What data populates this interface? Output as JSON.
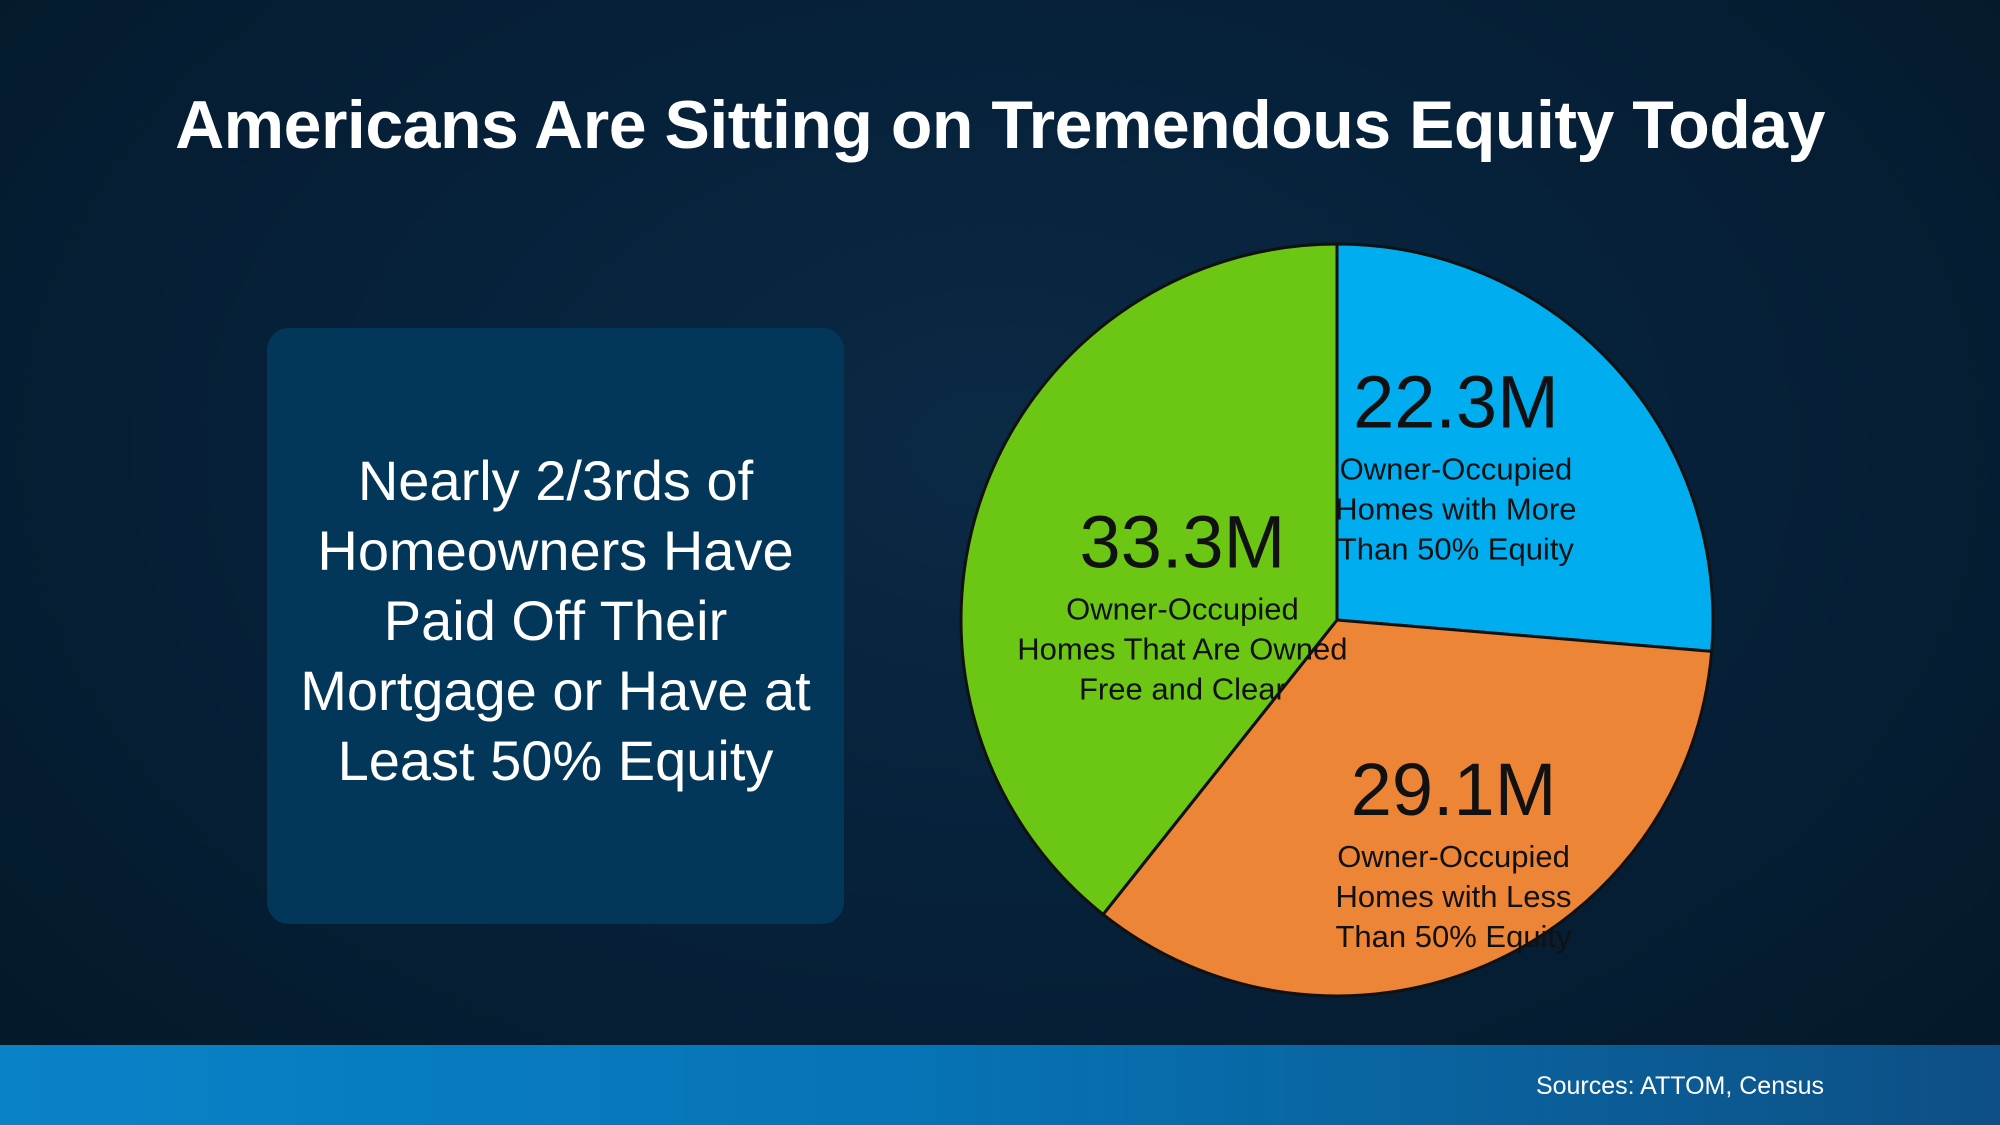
{
  "title": "Americans Are Sitting on Tremendous Equity Today",
  "callout": {
    "text": "Nearly 2/3rds of Homeowners Have Paid Off Their Mortgage or Have at Least 50% Equity"
  },
  "footer": {
    "sources": "Sources: ATTOM, Census",
    "colors": [
      "#0a82c8",
      "#0d4f85"
    ]
  },
  "chart_data": {
    "type": "pie",
    "title": "",
    "start_angle_deg": 0,
    "direction": "clockwise",
    "slices": [
      {
        "label": "Owner-Occupied Homes with More Than 50% Equity",
        "label_lines": [
          "Owner-Occupied",
          "Homes with More",
          "Than 50% Equity"
        ],
        "value": 22.3,
        "display": "22.3M",
        "color": "#00aeef"
      },
      {
        "label": "Owner-Occupied Homes with Less Than 50% Equity",
        "label_lines": [
          "Owner-Occupied",
          "Homes with Less",
          "Than 50% Equity"
        ],
        "value": 29.1,
        "display": "29.1M",
        "color": "#ec8535"
      },
      {
        "label": "Owner-Occupied Homes That Are Owned Free and Clear",
        "label_lines": [
          "Owner-Occupied",
          "Homes That Are Owned",
          "Free and Clear"
        ],
        "value": 33.3,
        "display": "33.3M",
        "color": "#6cc614"
      }
    ]
  }
}
